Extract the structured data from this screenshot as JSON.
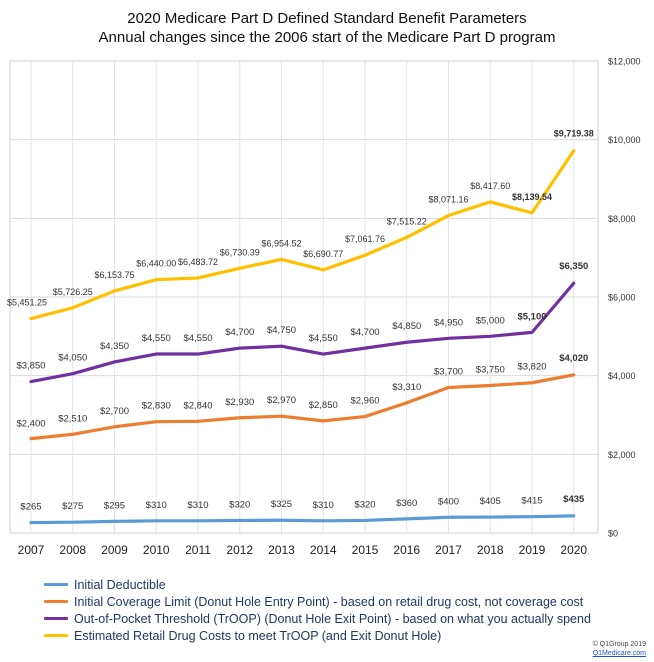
{
  "chart_data": {
    "type": "line",
    "title": "2020 Medicare Part D Defined Standard Benefit Parameters",
    "subtitle": "Annual changes since the 2006 start of the Medicare Part D program",
    "categories": [
      "2007",
      "2008",
      "2009",
      "2010",
      "2011",
      "2012",
      "2013",
      "2014",
      "2015",
      "2016",
      "2017",
      "2018",
      "2019",
      "2020"
    ],
    "ylim": [
      0,
      12000
    ],
    "y_ticks": [
      "$0",
      "$2,000",
      "$4,000",
      "$6,000",
      "$8,000",
      "$10,000",
      "$12,000"
    ],
    "y_tick_values": [
      0,
      2000,
      4000,
      6000,
      8000,
      10000,
      12000
    ],
    "y_axis_side": "right",
    "grid": true,
    "legend_placement": "bottom",
    "series": [
      {
        "name": "Initial Deductible",
        "color": "#5b9bd5",
        "values": [
          265,
          275,
          295,
          310,
          310,
          320,
          325,
          310,
          320,
          360,
          400,
          405,
          415,
          435
        ],
        "labels": [
          "$265",
          "$275",
          "$295",
          "$310",
          "$310",
          "$320",
          "$325",
          "$310",
          "$320",
          "$360",
          "$400",
          "$405",
          "$415",
          "$435"
        ]
      },
      {
        "name": "Initial Coverage Limit (Donut Hole Entry Point) - based on retail drug cost, not coverage cost",
        "color": "#ed7d31",
        "values": [
          2400,
          2510,
          2700,
          2830,
          2840,
          2930,
          2970,
          2850,
          2960,
          3310,
          3700,
          3750,
          3820,
          4020
        ],
        "labels": [
          "$2,400",
          "$2,510",
          "$2,700",
          "$2,830",
          "$2,840",
          "$2,930",
          "$2,970",
          "$2,850",
          "$2,960",
          "$3,310",
          "$3,700",
          "$3,750",
          "$3,820",
          "$4,020"
        ]
      },
      {
        "name": "Out-of-Pocket Threshold (TrOOP) (Donut Hole Exit Point) - based on what you actually spend",
        "color": "#7030a0",
        "values": [
          3850,
          4050,
          4350,
          4550,
          4550,
          4700,
          4750,
          4550,
          4700,
          4850,
          4950,
          5000,
          5100,
          6350
        ],
        "labels": [
          "$3,850",
          "$4,050",
          "$4,350",
          "$4,550",
          "$4,550",
          "$4,700",
          "$4,750",
          "$4,550",
          "$4,700",
          "$4,850",
          "$4,950",
          "$5,000",
          "$5,100",
          "$6,350"
        ]
      },
      {
        "name": "Estimated Retail Drug Costs to meet TrOOP (and Exit Donut Hole)",
        "color": "#ffc000",
        "values": [
          5451.25,
          5726.25,
          6153.75,
          6440.0,
          6483.72,
          6730.39,
          6954.52,
          6690.77,
          7061.76,
          7515.22,
          8071.16,
          8417.6,
          8139.54,
          9719.38
        ],
        "labels": [
          "$5,451.25",
          "$5,726.25",
          "$6,153.75",
          "$6,440.00",
          "$6,483.72",
          "$6,730.39",
          "$6,954.52",
          "$6,690.77",
          "$7,061.76",
          "$7,515.22",
          "$8,071.16",
          "$8,417.60",
          "$8,139.54",
          "$9,719.38"
        ]
      }
    ]
  },
  "credit": {
    "copyright": "© Q1Group 2019",
    "site": "Q1Medicare.com"
  }
}
